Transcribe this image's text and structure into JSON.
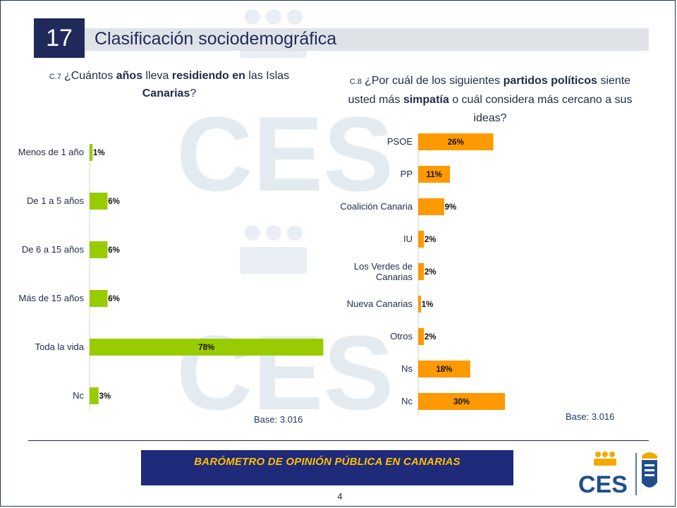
{
  "header": {
    "slide_number": "17",
    "title": "Clasificación sociodemográfica"
  },
  "q7": {
    "code": "C.7",
    "parts": [
      "¿Cuántos ",
      "años",
      " lleva ",
      "residiendo en",
      " las Islas ",
      "Canarias",
      "?"
    ],
    "base": "Base: 3.016"
  },
  "q8": {
    "code": "C.8",
    "parts": [
      "¿Por cuál de los siguientes ",
      "partidos políticos",
      " siente usted más ",
      "simpatía",
      " o cuál considera más cercano a sus ideas?"
    ],
    "base": "Base: 3.016"
  },
  "chart_data": [
    {
      "type": "bar",
      "orientation": "horizontal",
      "categories": [
        "Menos de 1 año",
        "De 1 a 5 años",
        "De 6 a 15 años",
        "Más de 15 años",
        "Toda la vida",
        "Nc"
      ],
      "values": [
        1,
        6,
        6,
        6,
        78,
        3
      ],
      "value_labels": [
        "1%",
        "6%",
        "6%",
        "6%",
        "78%",
        "3%"
      ],
      "color": "#99cc00"
    },
    {
      "type": "bar",
      "orientation": "horizontal",
      "categories": [
        "PSOE",
        "PP",
        "Coalición Canaria",
        "IU",
        "Los Verdes de Canarias",
        "Nueva Canarias",
        "Otros",
        "Ns",
        "Nc"
      ],
      "values": [
        26,
        11,
        9,
        2,
        2,
        1,
        2,
        18,
        30
      ],
      "value_labels": [
        "26%",
        "11%",
        "9%",
        "2%",
        "2%",
        "1%",
        "2%",
        "18%",
        "30%"
      ],
      "color": "#ff9900"
    }
  ],
  "footer": {
    "banner": "BARÓMETRO DE OPINIÓN PÚBLICA EN CANARIAS",
    "page": "4"
  },
  "logo": {
    "text": "CES"
  }
}
